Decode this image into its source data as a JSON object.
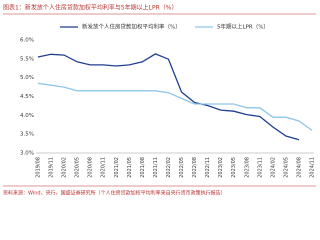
{
  "chart_data": {
    "type": "line",
    "title": "图表1：新发放个人住房贷款加权平均利率与5年期以上LPR（%）",
    "source": "资料来源：Wind，央行，国盛证券研究所（个人住房贷款加权平均利率来自央行货币政策执行报告）",
    "categories": [
      "2019/08",
      "2019/11",
      "2020/02",
      "2020/05",
      "2020/08",
      "2020/11",
      "2021/02",
      "2021/05",
      "2021/08",
      "2021/11",
      "2022/02",
      "2022/05",
      "2022/08",
      "2022/11",
      "2023/02",
      "2023/05",
      "2023/08",
      "2023/11",
      "2024/02",
      "2024/05",
      "2024/08",
      "2024/11"
    ],
    "series": [
      {
        "name": "新发放个人住房贷款加权平均利率（%）",
        "color": "#1f3f8f",
        "dashed": false,
        "values": [
          5.55,
          5.62,
          5.6,
          5.42,
          5.34,
          5.34,
          5.31,
          5.34,
          5.42,
          5.63,
          5.49,
          4.62,
          4.34,
          4.26,
          4.14,
          4.11,
          4.02,
          3.97,
          3.69,
          3.45,
          3.35,
          null
        ]
      },
      {
        "name": "5年期以上LPR（%）",
        "color": "#8fc6ea",
        "dashed": false,
        "values": [
          4.85,
          4.8,
          4.75,
          4.65,
          4.65,
          4.65,
          4.65,
          4.65,
          4.65,
          4.65,
          4.6,
          4.45,
          4.3,
          4.3,
          4.3,
          4.3,
          4.2,
          4.2,
          3.95,
          3.95,
          3.85,
          3.6
        ]
      }
    ],
    "ylim": [
      3,
      6
    ],
    "yticks": [
      {
        "value": 3,
        "label": "3.0%"
      },
      {
        "value": 3.5,
        "label": "3.5%"
      },
      {
        "value": 4,
        "label": "4.0%"
      },
      {
        "value": 4.5,
        "label": "4.5%"
      },
      {
        "value": 5,
        "label": "5.0%"
      },
      {
        "value": 5.5,
        "label": "5.5%"
      },
      {
        "value": 6,
        "label": "6.0%"
      }
    ],
    "grid": false
  }
}
